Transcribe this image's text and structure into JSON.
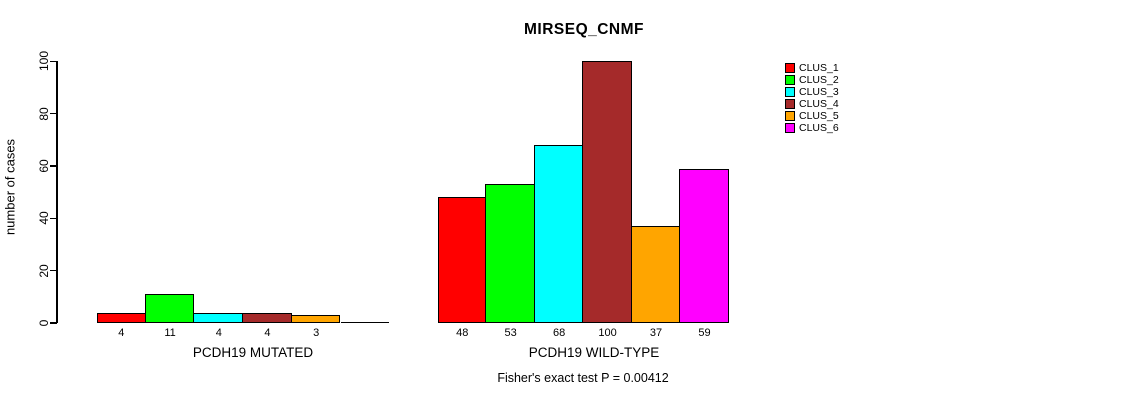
{
  "page": {
    "background": "#FFFFFF"
  },
  "chart_data": {
    "type": "bar",
    "title": "MIRSEQ_CNMF",
    "ylabel": "number of cases",
    "ylim": [
      0,
      100
    ],
    "yticks": [
      0,
      20,
      40,
      60,
      80,
      100
    ],
    "grid": false,
    "legend_position": "right",
    "annotation": "Fisher's exact test P = 0.00412",
    "clusters": [
      "CLUS_1",
      "CLUS_2",
      "CLUS_3",
      "CLUS_4",
      "CLUS_5",
      "CLUS_6"
    ],
    "colors": [
      "#FF0000",
      "#00FF00",
      "#00FFFF",
      "#A52A2A",
      "#FFA500",
      "#FF00FF"
    ],
    "groups": [
      {
        "label": "PCDH19 MUTATED",
        "values": [
          4,
          11,
          4,
          4,
          3,
          0
        ],
        "bar_labels": [
          "4",
          "11",
          "4",
          "4",
          "3",
          ""
        ]
      },
      {
        "label": "PCDH19 WILD-TYPE",
        "values": [
          48,
          53,
          68,
          100,
          37,
          59
        ],
        "bar_labels": [
          "48",
          "53",
          "68",
          "100",
          "37",
          "59"
        ]
      }
    ]
  }
}
